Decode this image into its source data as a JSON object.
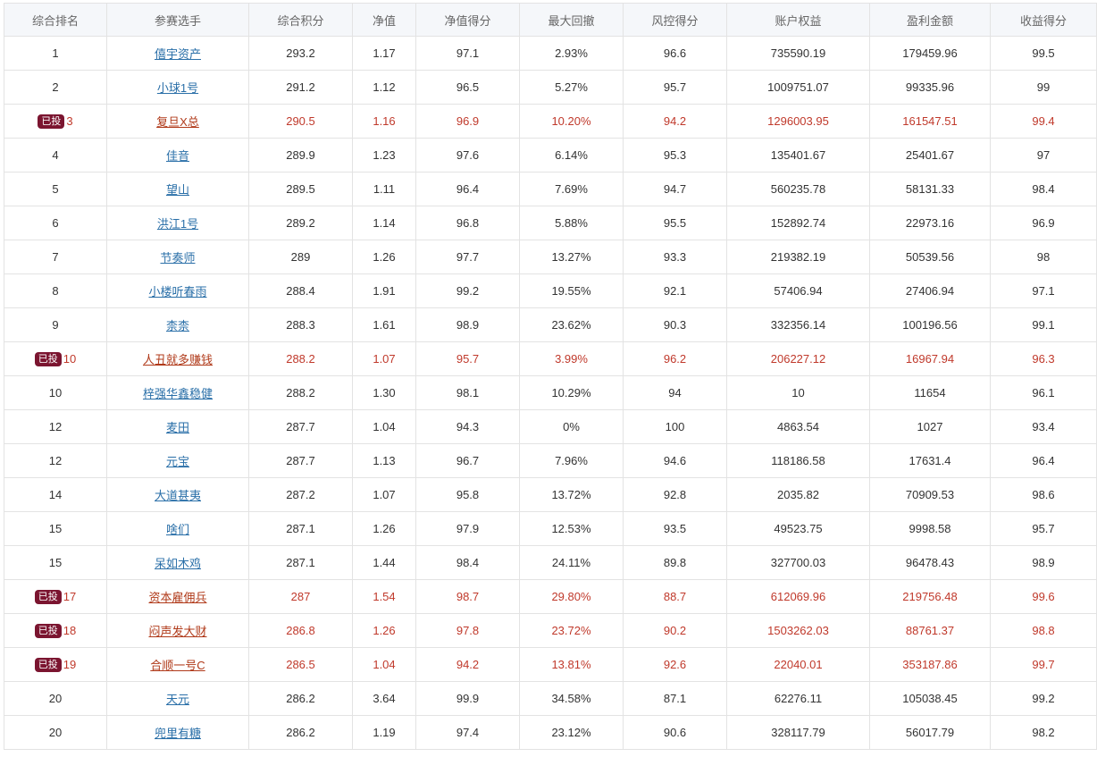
{
  "headers": [
    "综合排名",
    "参赛选手",
    "综合积分",
    "净值",
    "净值得分",
    "最大回撤",
    "风控得分",
    "账户权益",
    "盈利金额",
    "收益得分"
  ],
  "badge_label": "已投",
  "colors": {
    "highlight_text": "#c0392b",
    "badge_bg": "#7b1530",
    "link": "#2a6fa8"
  },
  "rows": [
    {
      "rank": "1",
      "badge": false,
      "name": "僖宇资产",
      "score": "293.2",
      "nav": "1.17",
      "nav_score": "97.1",
      "drawdown": "2.93%",
      "risk_score": "96.6",
      "equity": "735590.19",
      "profit": "179459.96",
      "return_score": "99.5"
    },
    {
      "rank": "2",
      "badge": false,
      "name": "小球1号",
      "score": "291.2",
      "nav": "1.12",
      "nav_score": "96.5",
      "drawdown": "5.27%",
      "risk_score": "95.7",
      "equity": "1009751.07",
      "profit": "99335.96",
      "return_score": "99"
    },
    {
      "rank": "3",
      "badge": true,
      "name": "复旦X总",
      "score": "290.5",
      "nav": "1.16",
      "nav_score": "96.9",
      "drawdown": "10.20%",
      "risk_score": "94.2",
      "equity": "1296003.95",
      "profit": "161547.51",
      "return_score": "99.4"
    },
    {
      "rank": "4",
      "badge": false,
      "name": "佳音",
      "score": "289.9",
      "nav": "1.23",
      "nav_score": "97.6",
      "drawdown": "6.14%",
      "risk_score": "95.3",
      "equity": "135401.67",
      "profit": "25401.67",
      "return_score": "97"
    },
    {
      "rank": "5",
      "badge": false,
      "name": "望山",
      "score": "289.5",
      "nav": "1.11",
      "nav_score": "96.4",
      "drawdown": "7.69%",
      "risk_score": "94.7",
      "equity": "560235.78",
      "profit": "58131.33",
      "return_score": "98.4"
    },
    {
      "rank": "6",
      "badge": false,
      "name": "洪江1号",
      "score": "289.2",
      "nav": "1.14",
      "nav_score": "96.8",
      "drawdown": "5.88%",
      "risk_score": "95.5",
      "equity": "152892.74",
      "profit": "22973.16",
      "return_score": "96.9"
    },
    {
      "rank": "7",
      "badge": false,
      "name": "节奏师",
      "score": "289",
      "nav": "1.26",
      "nav_score": "97.7",
      "drawdown": "13.27%",
      "risk_score": "93.3",
      "equity": "219382.19",
      "profit": "50539.56",
      "return_score": "98"
    },
    {
      "rank": "8",
      "badge": false,
      "name": "小楼听春雨",
      "score": "288.4",
      "nav": "1.91",
      "nav_score": "99.2",
      "drawdown": "19.55%",
      "risk_score": "92.1",
      "equity": "57406.94",
      "profit": "27406.94",
      "return_score": "97.1"
    },
    {
      "rank": "9",
      "badge": false,
      "name": "柰柰",
      "score": "288.3",
      "nav": "1.61",
      "nav_score": "98.9",
      "drawdown": "23.62%",
      "risk_score": "90.3",
      "equity": "332356.14",
      "profit": "100196.56",
      "return_score": "99.1"
    },
    {
      "rank": "10",
      "badge": true,
      "name": "人丑就多赚钱",
      "score": "288.2",
      "nav": "1.07",
      "nav_score": "95.7",
      "drawdown": "3.99%",
      "risk_score": "96.2",
      "equity": "206227.12",
      "profit": "16967.94",
      "return_score": "96.3"
    },
    {
      "rank": "10",
      "badge": false,
      "name": "梓强华鑫稳健",
      "score": "288.2",
      "nav": "1.30",
      "nav_score": "98.1",
      "drawdown": "10.29%",
      "risk_score": "94",
      "equity": "10",
      "profit": "11654",
      "return_score": "96.1"
    },
    {
      "rank": "12",
      "badge": false,
      "name": "麦田",
      "score": "287.7",
      "nav": "1.04",
      "nav_score": "94.3",
      "drawdown": "0%",
      "risk_score": "100",
      "equity": "4863.54",
      "profit": "1027",
      "return_score": "93.4"
    },
    {
      "rank": "12",
      "badge": false,
      "name": "元宝",
      "score": "287.7",
      "nav": "1.13",
      "nav_score": "96.7",
      "drawdown": "7.96%",
      "risk_score": "94.6",
      "equity": "118186.58",
      "profit": "17631.4",
      "return_score": "96.4"
    },
    {
      "rank": "14",
      "badge": false,
      "name": "大道甚夷",
      "score": "287.2",
      "nav": "1.07",
      "nav_score": "95.8",
      "drawdown": "13.72%",
      "risk_score": "92.8",
      "equity": "2035.82",
      "profit": "70909.53",
      "return_score": "98.6"
    },
    {
      "rank": "15",
      "badge": false,
      "name": "啥们",
      "score": "287.1",
      "nav": "1.26",
      "nav_score": "97.9",
      "drawdown": "12.53%",
      "risk_score": "93.5",
      "equity": "49523.75",
      "profit": "9998.58",
      "return_score": "95.7"
    },
    {
      "rank": "15",
      "badge": false,
      "name": "呆如木鸡",
      "score": "287.1",
      "nav": "1.44",
      "nav_score": "98.4",
      "drawdown": "24.11%",
      "risk_score": "89.8",
      "equity": "327700.03",
      "profit": "96478.43",
      "return_score": "98.9"
    },
    {
      "rank": "17",
      "badge": true,
      "name": "资本雇佣兵",
      "score": "287",
      "nav": "1.54",
      "nav_score": "98.7",
      "drawdown": "29.80%",
      "risk_score": "88.7",
      "equity": "612069.96",
      "profit": "219756.48",
      "return_score": "99.6"
    },
    {
      "rank": "18",
      "badge": true,
      "name": "闷声发大财",
      "score": "286.8",
      "nav": "1.26",
      "nav_score": "97.8",
      "drawdown": "23.72%",
      "risk_score": "90.2",
      "equity": "1503262.03",
      "profit": "88761.37",
      "return_score": "98.8"
    },
    {
      "rank": "19",
      "badge": true,
      "name": "合顺一号C",
      "score": "286.5",
      "nav": "1.04",
      "nav_score": "94.2",
      "drawdown": "13.81%",
      "risk_score": "92.6",
      "equity": "22040.01",
      "profit": "353187.86",
      "return_score": "99.7"
    },
    {
      "rank": "20",
      "badge": false,
      "name": "天元",
      "score": "286.2",
      "nav": "3.64",
      "nav_score": "99.9",
      "drawdown": "34.58%",
      "risk_score": "87.1",
      "equity": "62276.11",
      "profit": "105038.45",
      "return_score": "99.2"
    },
    {
      "rank": "20",
      "badge": false,
      "name": "兜里有糖",
      "score": "286.2",
      "nav": "1.19",
      "nav_score": "97.4",
      "drawdown": "23.12%",
      "risk_score": "90.6",
      "equity": "328117.79",
      "profit": "56017.79",
      "return_score": "98.2"
    }
  ]
}
